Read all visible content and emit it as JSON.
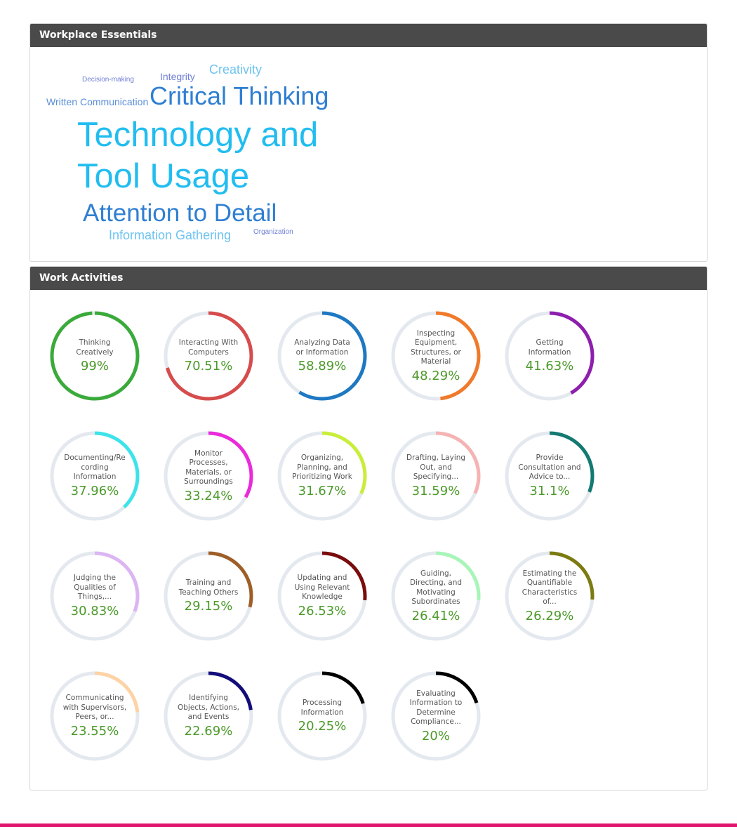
{
  "essentials": {
    "title": "Workplace Essentials",
    "words": [
      {
        "text": "Decision-making",
        "color": "#6f7fd6"
      },
      {
        "text": "Integrity",
        "color": "#6f7fd6"
      },
      {
        "text": "Creativity",
        "color": "#6ec3f2"
      },
      {
        "text": "Written Communication",
        "color": "#5b8fd6"
      },
      {
        "text": "Critical Thinking",
        "color": "#2f7fd2"
      },
      {
        "text": "Technology and",
        "color": "#22bdf0"
      },
      {
        "text": "Tool Usage",
        "color": "#22bdf0"
      },
      {
        "text": "Attention to Detail",
        "color": "#2f7fd2"
      },
      {
        "text": "Information Gathering",
        "color": "#6ec3f2"
      },
      {
        "text": "Organization",
        "color": "#6f7fd6"
      }
    ]
  },
  "activities": {
    "title": "Work Activities",
    "track_color": "#e4e8ef",
    "items": [
      {
        "label": "Thinking\nCreatively",
        "value": "99%",
        "percent": 99,
        "color": "#3aaa3a"
      },
      {
        "label": "Interacting With\nComputers",
        "value": "70.51%",
        "percent": 70.51,
        "color": "#d64c4c"
      },
      {
        "label": "Analyzing Data\nor Information",
        "value": "58.89%",
        "percent": 58.89,
        "color": "#1e78c2"
      },
      {
        "label": "Inspecting\nEquipment,\nStructures, or\nMaterial",
        "value": "48.29%",
        "percent": 48.29,
        "color": "#f07a2a"
      },
      {
        "label": "Getting\nInformation",
        "value": "41.63%",
        "percent": 41.63,
        "color": "#8e1fae"
      },
      {
        "label": "Documenting/Re\ncording\nInformation",
        "value": "37.96%",
        "percent": 37.96,
        "color": "#3de3ea"
      },
      {
        "label": "Monitor\nProcesses,\nMaterials, or\nSurroundings",
        "value": "33.24%",
        "percent": 33.24,
        "color": "#ea2adb"
      },
      {
        "label": "Organizing,\nPlanning, and\nPrioritizing Work",
        "value": "31.67%",
        "percent": 31.67,
        "color": "#c9ee3a"
      },
      {
        "label": "Drafting, Laying\nOut, and\nSpecifying...",
        "value": "31.59%",
        "percent": 31.59,
        "color": "#f5b3b3"
      },
      {
        "label": "Provide\nConsultation and\nAdvice to...",
        "value": "31.1%",
        "percent": 31.1,
        "color": "#137a72"
      },
      {
        "label": "Judging the\nQualities of\nThings,...",
        "value": "30.83%",
        "percent": 30.83,
        "color": "#dcb5f3"
      },
      {
        "label": "Training and\nTeaching Others",
        "value": "29.15%",
        "percent": 29.15,
        "color": "#9e5e28"
      },
      {
        "label": "Updating and\nUsing Relevant\nKnowledge",
        "value": "26.53%",
        "percent": 26.53,
        "color": "#7a0c0c"
      },
      {
        "label": "Guiding,\nDirecting, and\nMotivating\nSubordinates",
        "value": "26.41%",
        "percent": 26.41,
        "color": "#a8f5b8"
      },
      {
        "label": "Estimating the\nQuantifiable\nCharacteristics\nof...",
        "value": "26.29%",
        "percent": 26.29,
        "color": "#7b7b10"
      },
      {
        "label": "Communicating\nwith Supervisors,\nPeers, or...",
        "value": "23.55%",
        "percent": 23.55,
        "color": "#fdd3a5"
      },
      {
        "label": "Identifying\nObjects, Actions,\nand Events",
        "value": "22.69%",
        "percent": 22.69,
        "color": "#130d7a"
      },
      {
        "label": "Processing\nInformation",
        "value": "20.25%",
        "percent": 20.25,
        "color": "#000000"
      },
      {
        "label": "Evaluating\nInformation to\nDetermine\nCompliance...",
        "value": "20%",
        "percent": 20,
        "color": "#000000"
      }
    ]
  }
}
